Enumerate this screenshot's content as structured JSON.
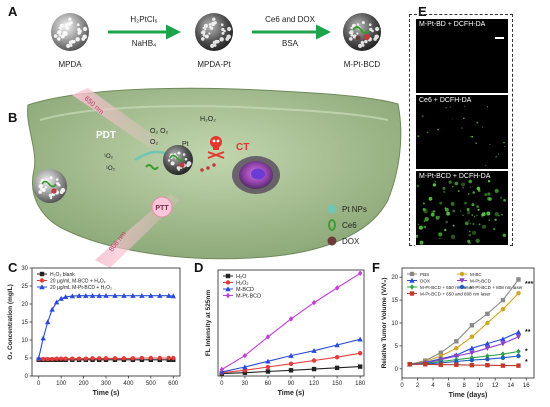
{
  "panels": {
    "A": "A",
    "B": "B",
    "C": "C",
    "D": "D",
    "E": "E",
    "F": "F"
  },
  "panel_a": {
    "np1": "MPDA",
    "np2": "MPDA-Pt",
    "np3": "M-Pt-BCD",
    "arrow1_top": "H₂PtCl₆",
    "arrow1_bottom": "NaHB₄",
    "arrow2_top": "Ce6 and DOX",
    "arrow2_bottom": "BSA"
  },
  "panel_b": {
    "laser650": "650 nm",
    "laser808": "808 nm",
    "pdt": "PDT",
    "ptt": "PTT",
    "ct": "CT",
    "pt": "Pt",
    "h2o2": "H₂O₂",
    "o2_a": "O₂ O₂",
    "o2_b": "O₂",
    "so_a": "¹O₂",
    "so_b": "¹O₂",
    "legend": [
      "Pt NPs",
      "Ce6",
      "DOX"
    ]
  },
  "panel_e": {
    "images": [
      "M-Pt-BD + DCFH-DA",
      "Ce6 + DCFH-DA",
      "M-Pt-BCD + DCFH-DA"
    ]
  },
  "colors": {
    "tumor": "#a3bd8e",
    "tumor_dark": "#7e9a6a",
    "laser": "#f4a3b8",
    "green_arrow": "#1da34a",
    "pt_np": "#6fc6b4",
    "ce6": "#3a9a2e",
    "dox": "#6b3b3b",
    "fluorescence": "#5fd24a"
  },
  "chart_data": [
    {
      "panel": "C",
      "type": "line",
      "xlabel": "Time (s)",
      "ylabel": "O₂ Concentration (mg/L)",
      "ylim": [
        0,
        30
      ],
      "xlim": [
        -30,
        630
      ],
      "xticks": [
        0,
        100,
        200,
        300,
        400,
        500,
        600
      ],
      "yticks": [
        0,
        5,
        10,
        15,
        20,
        25,
        30
      ],
      "legend_position": "top-left",
      "series": [
        {
          "name": "H₂O₂ blank",
          "color": "#222222",
          "marker": "square",
          "x": [
            0,
            20,
            40,
            60,
            80,
            100,
            120,
            150,
            180,
            210,
            240,
            270,
            300,
            340,
            380,
            420,
            460,
            500,
            540,
            580,
            600
          ],
          "y": [
            4.5,
            4.5,
            4.5,
            4.5,
            4.5,
            4.5,
            4.5,
            4.5,
            4.5,
            4.5,
            4.5,
            4.5,
            4.5,
            4.5,
            4.5,
            4.5,
            4.5,
            4.5,
            4.5,
            4.5,
            4.5
          ]
        },
        {
          "name": "20 μg/mL M-BCD + H₂O₂",
          "color": "#e23b3b",
          "marker": "circle",
          "x": [
            0,
            20,
            40,
            60,
            80,
            100,
            120,
            150,
            180,
            210,
            240,
            270,
            300,
            340,
            380,
            420,
            460,
            500,
            540,
            580,
            600
          ],
          "y": [
            4.7,
            4.7,
            4.7,
            4.7,
            4.8,
            4.8,
            4.8,
            4.8,
            4.8,
            4.8,
            4.9,
            4.9,
            4.9,
            4.9,
            4.9,
            4.9,
            5.0,
            5.0,
            5.0,
            5.0,
            5.0
          ]
        },
        {
          "name": "20 μg/mL M-Pt-BCD + H₂O₂",
          "color": "#2a4bd7",
          "marker": "triangle",
          "x": [
            0,
            20,
            40,
            60,
            80,
            100,
            120,
            150,
            180,
            210,
            240,
            270,
            300,
            340,
            380,
            420,
            460,
            500,
            540,
            580,
            600
          ],
          "y": [
            5.0,
            10.5,
            15.0,
            18.5,
            20.5,
            21.5,
            22.0,
            22.2,
            22.3,
            22.3,
            22.3,
            22.3,
            22.3,
            22.3,
            22.3,
            22.3,
            22.3,
            22.3,
            22.3,
            22.3,
            22.2
          ]
        }
      ]
    },
    {
      "panel": "D",
      "type": "line",
      "xlabel": "Time (s)",
      "ylabel": "FL Intensity at 525nm",
      "ylim": [
        0,
        1300
      ],
      "xlim": [
        -5,
        185
      ],
      "xticks": [
        0,
        30,
        60,
        90,
        120,
        150,
        180
      ],
      "legend_position": "top-left",
      "series": [
        {
          "name": "H₂O",
          "color": "#222222",
          "marker": "square",
          "x": [
            0,
            30,
            60,
            90,
            120,
            150,
            180
          ],
          "y": [
            30,
            40,
            55,
            70,
            85,
            100,
            115
          ]
        },
        {
          "name": "H₂O₂",
          "color": "#e23b3b",
          "marker": "circle",
          "x": [
            0,
            30,
            60,
            90,
            120,
            150,
            180
          ],
          "y": [
            40,
            70,
            110,
            150,
            190,
            230,
            280
          ]
        },
        {
          "name": "M-BCD",
          "color": "#2a4bd7",
          "marker": "triangle",
          "x": [
            0,
            30,
            60,
            90,
            120,
            150,
            180
          ],
          "y": [
            50,
            110,
            180,
            250,
            310,
            380,
            450
          ]
        },
        {
          "name": "M-Pt-BCD",
          "color": "#c23fd6",
          "marker": "diamond",
          "x": [
            0,
            30,
            60,
            90,
            120,
            150,
            180
          ],
          "y": [
            80,
            250,
            480,
            700,
            900,
            1080,
            1260
          ]
        }
      ]
    },
    {
      "panel": "F",
      "type": "line",
      "xlabel": "Time (days)",
      "ylabel": "Relative Tumor Volume (V/V₀)",
      "ylim": [
        -2,
        22
      ],
      "xlim": [
        0,
        17
      ],
      "xticks": [
        0,
        2,
        4,
        6,
        8,
        10,
        12,
        14,
        16
      ],
      "yticks": [
        0,
        5,
        10,
        15,
        20
      ],
      "legend_position": "top-left",
      "significance": [
        "***",
        "**",
        "*",
        "*"
      ],
      "series": [
        {
          "name": "PBS",
          "color": "#8a8a8a",
          "marker": "square",
          "x": [
            1,
            3,
            5,
            7,
            9,
            11,
            13,
            15
          ],
          "y": [
            1.0,
            1.8,
            3.5,
            6.0,
            9.5,
            12.0,
            15.0,
            19.5
          ]
        },
        {
          "name": "M-BC",
          "color": "#d1a422",
          "marker": "circle",
          "x": [
            1,
            3,
            5,
            7,
            9,
            11,
            13,
            15
          ],
          "y": [
            1.0,
            1.6,
            2.8,
            4.5,
            7.0,
            10.0,
            13.0,
            16.5
          ]
        },
        {
          "name": "DOX",
          "color": "#2a4bd7",
          "marker": "triangle",
          "x": [
            1,
            3,
            5,
            7,
            9,
            11,
            13,
            15
          ],
          "y": [
            1.0,
            1.4,
            2.2,
            3.0,
            4.5,
            5.5,
            6.5,
            8.0
          ]
        },
        {
          "name": "M-Pt-BCD",
          "color": "#8e3fc9",
          "marker": "triangle-down",
          "x": [
            1,
            3,
            5,
            7,
            9,
            11,
            13,
            15
          ],
          "y": [
            1.0,
            1.3,
            2.0,
            2.8,
            3.5,
            4.5,
            5.5,
            7.0
          ]
        },
        {
          "name": "M-Pt-BCD + 650 nm laser",
          "color": "#2ca24a",
          "marker": "diamond",
          "x": [
            1,
            3,
            5,
            7,
            9,
            11,
            13,
            15
          ],
          "y": [
            1.0,
            1.2,
            1.6,
            2.0,
            2.4,
            2.8,
            3.2,
            3.8
          ]
        },
        {
          "name": "M-Pt-BCD + 808 nm laser",
          "color": "#1f5fbf",
          "marker": "circle",
          "x": [
            1,
            3,
            5,
            7,
            9,
            11,
            13,
            15
          ],
          "y": [
            1.0,
            1.1,
            1.3,
            1.6,
            1.9,
            2.1,
            2.4,
            2.8
          ]
        },
        {
          "name": "M-Pt-BCD + 650 and 808 nm laser",
          "color": "#c0392b",
          "marker": "square",
          "x": [
            1,
            3,
            5,
            7,
            9,
            11,
            13,
            15
          ],
          "y": [
            1.0,
            1.0,
            0.9,
            0.9,
            0.8,
            0.8,
            0.7,
            0.7
          ]
        }
      ]
    }
  ]
}
